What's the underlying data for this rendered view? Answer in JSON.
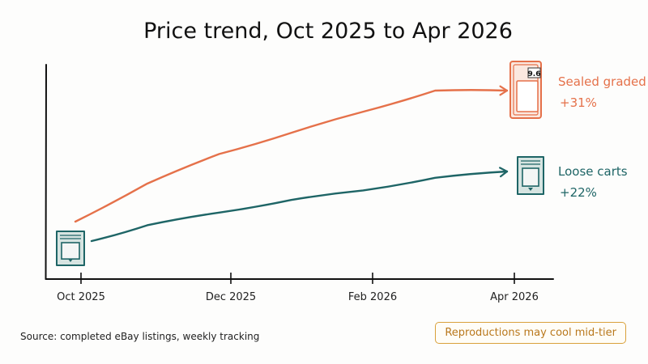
{
  "chart_data": {
    "type": "line",
    "title": "Price trend, Oct 2025 to Apr 2026",
    "x_ticks": [
      "Oct 2025",
      "Dec 2025",
      "Feb 2026",
      "Apr 2026"
    ],
    "series": [
      {
        "name": "Sealed graded",
        "change_label": "+31%",
        "color": "#e5714a",
        "icon": "graded-slab-icon",
        "grade_label": "9.6",
        "x": [
          "Oct 2025",
          "Nov 2025",
          "Dec 2025",
          "Jan 2026",
          "Feb 2026",
          "Mar 2026",
          "Apr 2026"
        ],
        "values": [
          100,
          109,
          116,
          121,
          126,
          131,
          131
        ]
      },
      {
        "name": "Loose carts",
        "change_label": "+22%",
        "color": "#1e6566",
        "icon": "cartridge-icon",
        "x": [
          "Oct 2025",
          "Nov 2025",
          "Dec 2025",
          "Jan 2026",
          "Feb 2026",
          "Mar 2026",
          "Apr 2026"
        ],
        "values": [
          100,
          105,
          109,
          113,
          116,
          120,
          122
        ]
      }
    ],
    "grid": false,
    "legend": "direct labels at line ends"
  },
  "footer": {
    "source": "Source: completed eBay listings, weekly tracking",
    "note": "Reproductions may cool mid-tier"
  }
}
